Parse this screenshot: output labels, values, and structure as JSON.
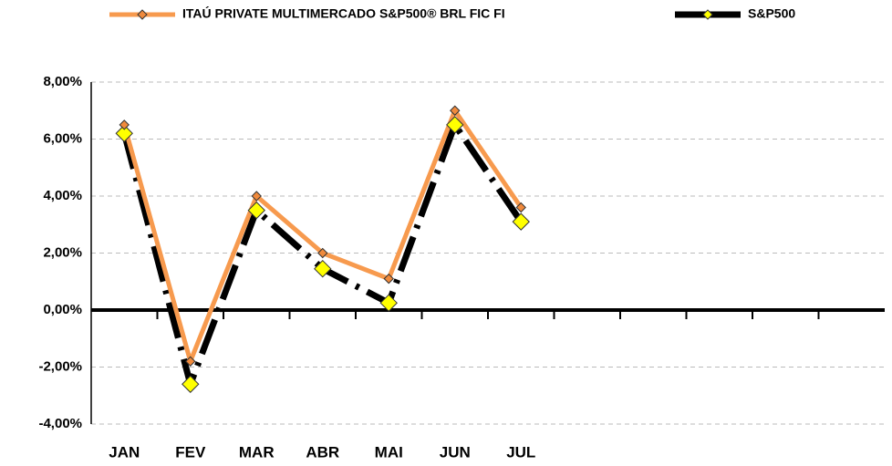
{
  "chart_data": {
    "type": "line",
    "categories": [
      "JAN",
      "FEV",
      "MAR",
      "ABR",
      "MAI",
      "JUN",
      "JUL",
      null,
      null,
      null,
      null,
      null
    ],
    "series": [
      {
        "name": "ITAÚ PRIVATE MULTIMERCADO S&P500® BRL FIC FI",
        "color": "#f79a4e",
        "marker_color": "#f08a3c",
        "values": [
          6.5,
          -1.8,
          4.0,
          2.0,
          1.1,
          7.0,
          3.6,
          null,
          null,
          null,
          null,
          null
        ]
      },
      {
        "name": "S&P500",
        "color": "#000000",
        "marker_color": "#ffff00",
        "values": [
          6.2,
          -2.6,
          3.5,
          1.45,
          0.25,
          6.5,
          3.1,
          null,
          null,
          null,
          null,
          null
        ]
      }
    ],
    "ylim": [
      -4,
      8
    ],
    "yticks": [
      {
        "value": -4,
        "label": "-4,00%"
      },
      {
        "value": -2,
        "label": "-2,00%"
      },
      {
        "value": 0,
        "label": "0,00%"
      },
      {
        "value": 2,
        "label": "2,00%"
      },
      {
        "value": 4,
        "label": "4,00%"
      },
      {
        "value": 6,
        "label": "6,00%"
      },
      {
        "value": 8,
        "label": "8,00%"
      }
    ],
    "grid": true
  }
}
